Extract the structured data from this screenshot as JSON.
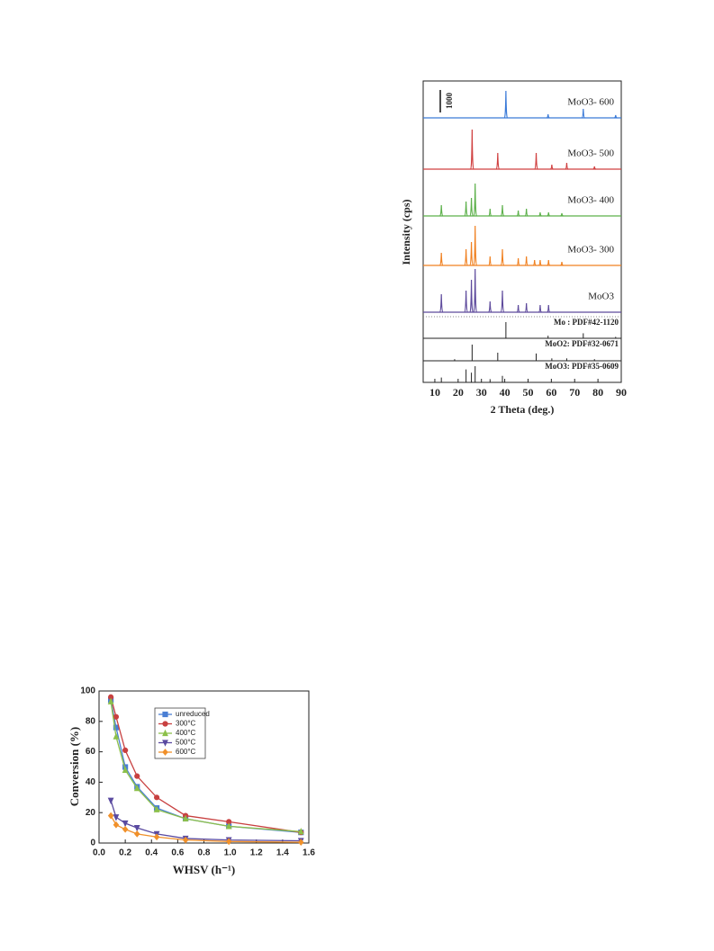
{
  "chart_data": [
    {
      "type": "xrd",
      "xlabel": "2 Theta (deg.)",
      "ylabel": "Intensity (cps)",
      "xlim": [
        5,
        90
      ],
      "xticks": [
        10,
        20,
        30,
        40,
        50,
        60,
        70,
        80,
        90
      ],
      "scale_bar": 1000,
      "series": [
        {
          "name": "MoO3- 600",
          "color": "#3a7ad8",
          "x": [
            40.5,
            58.6,
            73.7,
            87.6
          ],
          "values": [
            1200,
            160,
            400,
            120
          ]
        },
        {
          "name": "MoO3- 500",
          "color": "#d04040",
          "x": [
            26.0,
            37.0,
            53.5,
            60.2,
            66.6,
            78.5
          ],
          "values": [
            1760,
            720,
            720,
            200,
            280,
            120
          ]
        },
        {
          "name": "MoO3- 400",
          "color": "#5cb04a",
          "x": [
            12.8,
            23.4,
            25.7,
            27.3,
            33.7,
            39.0,
            45.8,
            49.3,
            55.2,
            58.8,
            64.5
          ],
          "values": [
            480,
            640,
            800,
            1440,
            320,
            480,
            240,
            320,
            160,
            160,
            120
          ]
        },
        {
          "name": "MoO3- 300",
          "color": "#f08020",
          "x": [
            12.8,
            23.4,
            25.7,
            27.3,
            33.7,
            39.0,
            45.8,
            49.3,
            52.8,
            55.2,
            58.8,
            64.5
          ],
          "values": [
            560,
            720,
            1040,
            1760,
            400,
            720,
            320,
            400,
            240,
            240,
            240,
            160
          ]
        },
        {
          "name": "MoO3",
          "color": "#5e4a9c",
          "x": [
            12.8,
            23.4,
            25.7,
            27.3,
            33.7,
            39.0,
            45.8,
            49.3,
            55.2,
            58.8
          ],
          "values": [
            800,
            960,
            1440,
            1920,
            480,
            960,
            320,
            400,
            320,
            320
          ]
        }
      ],
      "references": [
        {
          "name": "Mo : PDF#42-1120",
          "x": [
            40.5,
            58.6,
            73.7,
            87.6
          ],
          "values": [
            100,
            16,
            31,
            9
          ]
        },
        {
          "name": "MoO2: PDF#32-0671",
          "x": [
            18.5,
            26.0,
            37.0,
            53.5,
            60.2,
            66.6,
            78.5
          ],
          "values": [
            10,
            100,
            50,
            45,
            15,
            15,
            10
          ]
        },
        {
          "name": "MoO3: PDF#35-0609",
          "x": [
            12.8,
            23.4,
            25.7,
            27.3,
            33.7,
            39.0
          ],
          "values": [
            30,
            80,
            60,
            100,
            20,
            40
          ]
        }
      ]
    },
    {
      "type": "line",
      "xlabel": "WHSV (h⁻¹)",
      "ylabel": "Conversion (%)",
      "xlim": [
        0,
        1.6
      ],
      "xticks": [
        {
          "value": 0,
          "label": "0.0"
        },
        0.2,
        0.4,
        0.6,
        0.8,
        {
          "value": 1,
          "label": "1.0"
        },
        1.2,
        1.4,
        1.6
      ],
      "ylim": [
        0,
        100
      ],
      "yticks": [
        0,
        20,
        40,
        60,
        80,
        100
      ],
      "x": [
        0.09,
        0.13,
        0.2,
        0.29,
        0.44,
        0.66,
        0.99,
        1.54
      ],
      "series": [
        {
          "name": "unreduced",
          "color": "#4a7fd4",
          "marker": "square",
          "values": [
            94,
            76,
            50,
            37,
            23,
            16,
            11,
            7
          ]
        },
        {
          "name": "300°C",
          "color": "#c84040",
          "marker": "circle",
          "values": [
            96,
            83,
            61,
            44,
            30,
            18,
            14,
            7
          ]
        },
        {
          "name": "400°C",
          "color": "#8cc04a",
          "marker": "triangle-up",
          "values": [
            93,
            70,
            48,
            36,
            22,
            16,
            11,
            7.5
          ]
        },
        {
          "name": "500°C",
          "color": "#5a4aa0",
          "marker": "triangle-down",
          "values": [
            28,
            17,
            13,
            10,
            6,
            3,
            2,
            1.5
          ]
        },
        {
          "name": "600°C",
          "color": "#f0902a",
          "marker": "diamond",
          "values": [
            18,
            12,
            9,
            6,
            4,
            2,
            1,
            0.5
          ]
        }
      ]
    }
  ]
}
